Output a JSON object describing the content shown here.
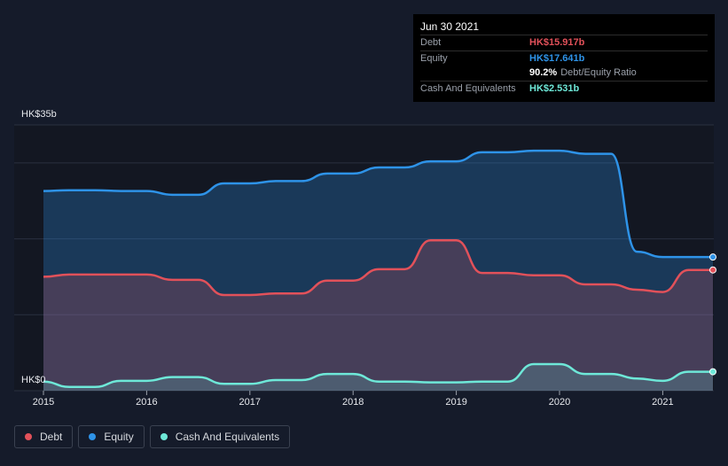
{
  "chart_data": {
    "type": "area",
    "title": "",
    "xlabel": "",
    "ylabel": "",
    "y_top_label": "HK$35b",
    "y_bottom_label": "HK$0",
    "xlim": [
      2015,
      2021.47
    ],
    "ylim": [
      0,
      35
    ],
    "x_ticks": [
      "2015",
      "2016",
      "2017",
      "2018",
      "2019",
      "2020",
      "2021"
    ],
    "grid": true,
    "legend_position": "bottom-left",
    "series": [
      {
        "name": "Debt",
        "color": "#e2515a",
        "points": [
          [
            2015.0,
            15.0
          ],
          [
            2015.25,
            15.3
          ],
          [
            2015.5,
            15.3
          ],
          [
            2015.75,
            15.3
          ],
          [
            2016.0,
            15.3
          ],
          [
            2016.25,
            14.6
          ],
          [
            2016.5,
            14.6
          ],
          [
            2016.75,
            12.6
          ],
          [
            2017.0,
            12.6
          ],
          [
            2017.25,
            12.8
          ],
          [
            2017.5,
            12.8
          ],
          [
            2017.75,
            14.5
          ],
          [
            2018.0,
            14.5
          ],
          [
            2018.25,
            16.0
          ],
          [
            2018.5,
            16.0
          ],
          [
            2018.75,
            19.8
          ],
          [
            2019.0,
            19.8
          ],
          [
            2019.25,
            15.5
          ],
          [
            2019.5,
            15.5
          ],
          [
            2019.75,
            15.2
          ],
          [
            2020.0,
            15.2
          ],
          [
            2020.25,
            14.0
          ],
          [
            2020.5,
            14.0
          ],
          [
            2020.75,
            13.3
          ],
          [
            2021.0,
            13.0
          ],
          [
            2021.25,
            15.9
          ],
          [
            2021.5,
            15.9
          ]
        ]
      },
      {
        "name": "Equity",
        "color": "#2e93e8",
        "points": [
          [
            2015.0,
            26.3
          ],
          [
            2015.25,
            26.4
          ],
          [
            2015.5,
            26.4
          ],
          [
            2015.75,
            26.3
          ],
          [
            2016.0,
            26.3
          ],
          [
            2016.25,
            25.8
          ],
          [
            2016.5,
            25.8
          ],
          [
            2016.75,
            27.3
          ],
          [
            2017.0,
            27.3
          ],
          [
            2017.25,
            27.6
          ],
          [
            2017.5,
            27.6
          ],
          [
            2017.75,
            28.6
          ],
          [
            2018.0,
            28.6
          ],
          [
            2018.25,
            29.4
          ],
          [
            2018.5,
            29.4
          ],
          [
            2018.75,
            30.2
          ],
          [
            2019.0,
            30.2
          ],
          [
            2019.25,
            31.4
          ],
          [
            2019.5,
            31.4
          ],
          [
            2019.75,
            31.6
          ],
          [
            2020.0,
            31.6
          ],
          [
            2020.25,
            31.2
          ],
          [
            2020.5,
            31.2
          ],
          [
            2020.75,
            18.3
          ],
          [
            2021.0,
            17.6
          ],
          [
            2021.25,
            17.6
          ],
          [
            2021.5,
            17.6
          ]
        ]
      },
      {
        "name": "Cash And Equivalents",
        "color": "#6ee8d8",
        "points": [
          [
            2015.0,
            1.2
          ],
          [
            2015.25,
            0.5
          ],
          [
            2015.5,
            0.5
          ],
          [
            2015.75,
            1.3
          ],
          [
            2016.0,
            1.3
          ],
          [
            2016.25,
            1.8
          ],
          [
            2016.5,
            1.8
          ],
          [
            2016.75,
            0.9
          ],
          [
            2017.0,
            0.9
          ],
          [
            2017.25,
            1.4
          ],
          [
            2017.5,
            1.4
          ],
          [
            2017.75,
            2.2
          ],
          [
            2018.0,
            2.2
          ],
          [
            2018.25,
            1.2
          ],
          [
            2018.5,
            1.2
          ],
          [
            2018.75,
            1.1
          ],
          [
            2019.0,
            1.1
          ],
          [
            2019.25,
            1.2
          ],
          [
            2019.5,
            1.2
          ],
          [
            2019.75,
            3.5
          ],
          [
            2020.0,
            3.5
          ],
          [
            2020.25,
            2.2
          ],
          [
            2020.5,
            2.2
          ],
          [
            2020.75,
            1.6
          ],
          [
            2021.0,
            1.3
          ],
          [
            2021.25,
            2.5
          ],
          [
            2021.5,
            2.5
          ]
        ]
      }
    ]
  },
  "tooltip": {
    "date": "Jun 30 2021",
    "rows": [
      {
        "label": "Debt",
        "value": "HK$15.917b",
        "color": "#e2515a"
      },
      {
        "label": "Equity",
        "value": "HK$17.641b",
        "color": "#2e93e8"
      },
      {
        "label": "",
        "value": "90.2%",
        "sub": "Debt/Equity Ratio",
        "color": "#ffffff"
      },
      {
        "label": "Cash And Equivalents",
        "value": "HK$2.531b",
        "color": "#6ee8d8"
      }
    ]
  },
  "legend": [
    {
      "label": "Debt",
      "color": "#e2515a"
    },
    {
      "label": "Equity",
      "color": "#2e93e8"
    },
    {
      "label": "Cash And Equivalents",
      "color": "#6ee8d8"
    }
  ]
}
